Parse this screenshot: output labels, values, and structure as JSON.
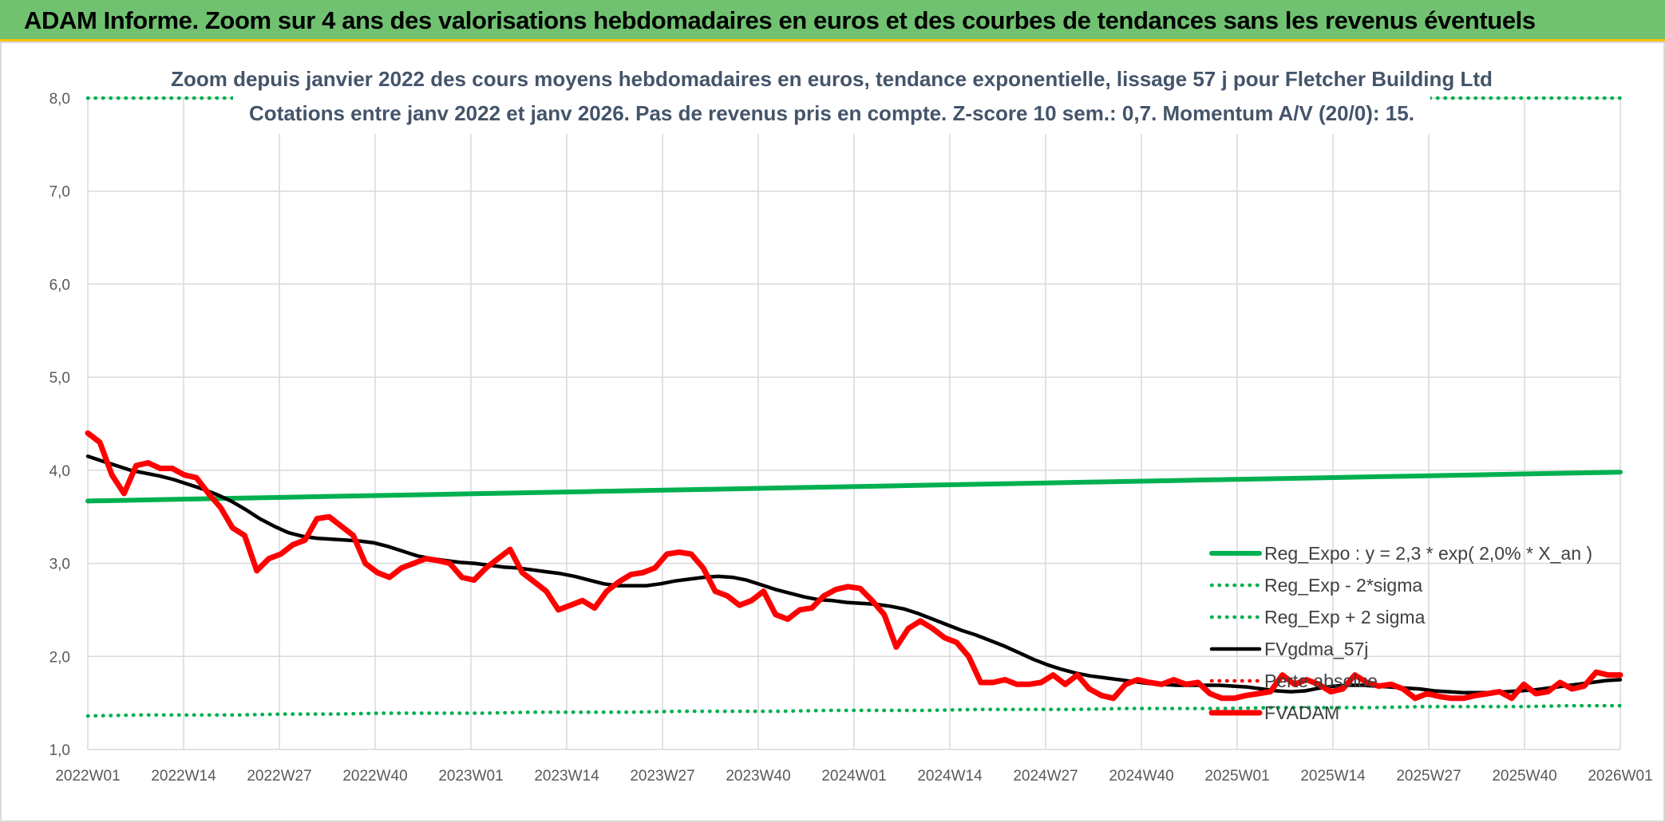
{
  "header": {
    "title": "ADAM Informe. Zoom sur 4 ans des valorisations hebdomadaires en euros et des courbes de tendances sans les revenus éventuels"
  },
  "chart_data": {
    "type": "line",
    "title": "Zoom depuis janvier 2022 des cours moyens hebdomadaires en euros, tendance exponentielle, lissage 57 j pour Fletcher Building Ltd",
    "subtitle": "Cotations entre janv 2022 et janv 2026. Pas de revenus pris en compte. Z-score 10 sem.: 0,7. Momentum A/V (20/0): 15.",
    "ylim": [
      1.0,
      8.0
    ],
    "y_ticks": [
      "1,0",
      "2,0",
      "3,0",
      "4,0",
      "5,0",
      "6,0",
      "7,0",
      "8,0"
    ],
    "x_ticks": [
      "2022W01",
      "2022W14",
      "2022W27",
      "2022W40",
      "2023W01",
      "2023W14",
      "2023W27",
      "2023W40",
      "2024W01",
      "2024W14",
      "2024W27",
      "2024W40",
      "2025W01",
      "2025W14",
      "2025W27",
      "2025W40",
      "2026W01"
    ],
    "grid": true,
    "legend_position": "right",
    "colors": {
      "reg_expo": "#00b050",
      "sigma_lines": "#00b050",
      "fvgdma": "#000000",
      "perte_absolue": "#ff0000",
      "fvadam": "#ff0000"
    },
    "series": [
      {
        "name": "Reg_Expo : y = 2,3 * exp( 2,0% *  X_an )",
        "style": "solid",
        "values": [
          3.67,
          3.68,
          3.69,
          3.7,
          3.71,
          3.72,
          3.73,
          3.74,
          3.75,
          3.76,
          3.77,
          3.78,
          3.79,
          3.8,
          3.81,
          3.82,
          3.83,
          3.84,
          3.85,
          3.86,
          3.87,
          3.88,
          3.89,
          3.9,
          3.91,
          3.92,
          3.93,
          3.94,
          3.95,
          3.96,
          3.97,
          3.98
        ]
      },
      {
        "name": "Reg_Exp - 2*sigma",
        "style": "dotted",
        "values": [
          1.36,
          1.37,
          1.37,
          1.37,
          1.38,
          1.38,
          1.39,
          1.39,
          1.39,
          1.4,
          1.4,
          1.4,
          1.41,
          1.41,
          1.41,
          1.42,
          1.42,
          1.42,
          1.43,
          1.43,
          1.43,
          1.44,
          1.44,
          1.44,
          1.45,
          1.45,
          1.45,
          1.46,
          1.46,
          1.46,
          1.47,
          1.47
        ]
      },
      {
        "name": "Reg_Exp + 2 sigma",
        "style": "dotted",
        "values": [
          8.0,
          8.0,
          8.0,
          8.0,
          8.0,
          8.0,
          8.0,
          8.0,
          8.0,
          8.0,
          8.0,
          8.0,
          8.0,
          8.0,
          8.0,
          8.0,
          8.0,
          8.0,
          8.0,
          8.0,
          8.0,
          8.0,
          8.0,
          8.0,
          8.0,
          8.0,
          8.0,
          8.0,
          8.0,
          8.0,
          8.0,
          8.0
        ]
      },
      {
        "name": "FVgdma_57j",
        "style": "solid",
        "values": [
          4.15,
          4.1,
          4.05,
          4.0,
          3.97,
          3.94,
          3.9,
          3.85,
          3.8,
          3.74,
          3.67,
          3.58,
          3.48,
          3.4,
          3.33,
          3.29,
          3.27,
          3.26,
          3.25,
          3.24,
          3.22,
          3.18,
          3.13,
          3.08,
          3.05,
          3.03,
          3.01,
          3.0,
          2.98,
          2.96,
          2.95,
          2.93,
          2.91,
          2.89,
          2.86,
          2.82,
          2.78,
          2.76,
          2.76,
          2.76,
          2.78,
          2.81,
          2.83,
          2.85,
          2.86,
          2.85,
          2.82,
          2.77,
          2.72,
          2.68,
          2.64,
          2.61,
          2.6,
          2.58,
          2.57,
          2.56,
          2.54,
          2.51,
          2.46,
          2.4,
          2.34,
          2.28,
          2.23,
          2.17,
          2.11,
          2.04,
          1.97,
          1.91,
          1.86,
          1.82,
          1.79,
          1.77,
          1.75,
          1.73,
          1.71,
          1.7,
          1.69,
          1.69,
          1.69,
          1.69,
          1.68,
          1.67,
          1.65,
          1.63,
          1.62,
          1.63,
          1.66,
          1.68,
          1.69,
          1.69,
          1.68,
          1.67,
          1.66,
          1.65,
          1.63,
          1.62,
          1.61,
          1.61,
          1.61,
          1.62,
          1.63,
          1.64,
          1.66,
          1.68,
          1.7,
          1.72,
          1.74,
          1.75
        ]
      },
      {
        "name": "Perte absolue",
        "style": "dotted",
        "values": []
      },
      {
        "name": "FVADAM",
        "style": "solid",
        "values": [
          4.4,
          4.3,
          3.95,
          3.75,
          4.05,
          4.08,
          4.02,
          4.02,
          3.95,
          3.92,
          3.75,
          3.6,
          3.38,
          3.3,
          2.92,
          3.05,
          3.1,
          3.2,
          3.25,
          3.48,
          3.5,
          3.4,
          3.3,
          3.0,
          2.9,
          2.85,
          2.95,
          3.0,
          3.05,
          3.03,
          3.0,
          2.85,
          2.82,
          2.95,
          3.05,
          3.15,
          2.9,
          2.8,
          2.7,
          2.5,
          2.55,
          2.6,
          2.52,
          2.7,
          2.8,
          2.88,
          2.9,
          2.95,
          3.1,
          3.12,
          3.1,
          2.95,
          2.7,
          2.65,
          2.55,
          2.6,
          2.7,
          2.45,
          2.4,
          2.5,
          2.52,
          2.65,
          2.72,
          2.75,
          2.73,
          2.6,
          2.45,
          2.1,
          2.3,
          2.38,
          2.3,
          2.2,
          2.15,
          2.0,
          1.72,
          1.72,
          1.75,
          1.7,
          1.7,
          1.72,
          1.8,
          1.7,
          1.8,
          1.65,
          1.58,
          1.55,
          1.7,
          1.75,
          1.72,
          1.7,
          1.75,
          1.7,
          1.72,
          1.6,
          1.55,
          1.55,
          1.58,
          1.6,
          1.62,
          1.8,
          1.7,
          1.75,
          1.7,
          1.62,
          1.65,
          1.8,
          1.72,
          1.68,
          1.7,
          1.65,
          1.55,
          1.6,
          1.57,
          1.55,
          1.55,
          1.58,
          1.6,
          1.62,
          1.55,
          1.7,
          1.6,
          1.62,
          1.72,
          1.65,
          1.68,
          1.83,
          1.8,
          1.8
        ]
      }
    ]
  }
}
